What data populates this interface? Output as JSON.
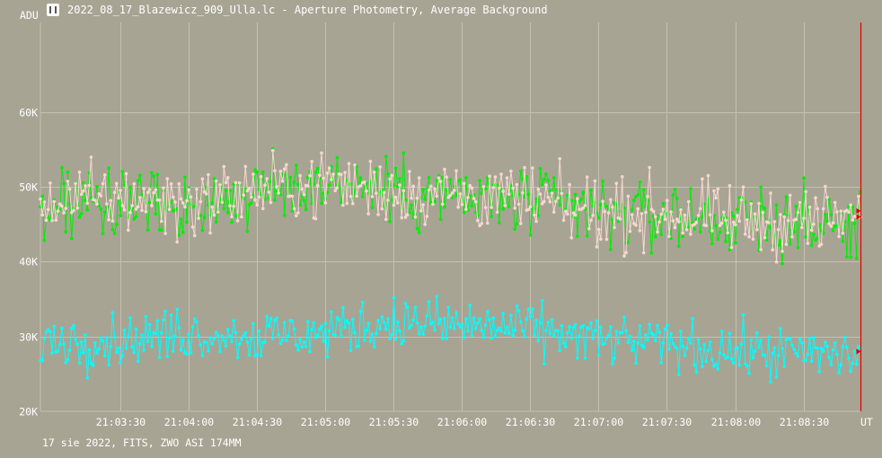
{
  "window": {
    "title": "2022_08_17_Blazewicz_909_Ulla.lc - Aperture Photometry, Average Background",
    "icon": "telescope-icon"
  },
  "footer": "17 sie 2022, FITS, ZWO ASI 174MM",
  "colors": {
    "background": "#a8a494",
    "grid": "#c4c0b3",
    "series_green": "#00ee00",
    "series_pink": "#f6d8d0",
    "series_cyan": "#00ffff",
    "cursor": "#e00000"
  },
  "chart_data": {
    "type": "line",
    "ylabel": "ADU",
    "xlabel": "UT",
    "ylim": [
      20000,
      72000
    ],
    "y_ticks": [
      {
        "value": 20000,
        "label": "20K"
      },
      {
        "value": 30000,
        "label": "30K"
      },
      {
        "value": 40000,
        "label": "40K"
      },
      {
        "value": 50000,
        "label": "50K"
      },
      {
        "value": 60000,
        "label": "60K"
      }
    ],
    "xlim": [
      "21:02:55",
      "21:08:55"
    ],
    "x_ticks": [
      "21:03:30",
      "21:04:00",
      "21:04:30",
      "21:05:00",
      "21:05:30",
      "21:06:00",
      "21:06:30",
      "21:07:00",
      "21:07:30",
      "21:08:00",
      "21:08:30"
    ],
    "grid": true,
    "cursor_time": "21:08:55",
    "series": [
      {
        "color": "#00ee00",
        "x_start": "21:02:55",
        "x_end": "21:08:55",
        "trend": [
          [
            "21:02:55",
            47500
          ],
          [
            "21:03:30",
            48500
          ],
          [
            "21:04:00",
            47500
          ],
          [
            "21:04:30",
            49000
          ],
          [
            "21:05:00",
            51000
          ],
          [
            "21:05:30",
            49500
          ],
          [
            "21:06:00",
            48500
          ],
          [
            "21:06:30",
            48000
          ],
          [
            "21:07:00",
            46500
          ],
          [
            "21:07:30",
            46000
          ],
          [
            "21:08:00",
            45500
          ],
          [
            "21:08:55",
            44500
          ]
        ],
        "noise": 4200
      },
      {
        "color": "#f6d8d0",
        "x_start": "21:02:55",
        "x_end": "21:08:55",
        "trend": [
          [
            "21:02:55",
            48000
          ],
          [
            "21:03:30",
            48500
          ],
          [
            "21:04:00",
            48000
          ],
          [
            "21:04:30",
            49500
          ],
          [
            "21:05:00",
            50500
          ],
          [
            "21:05:30",
            49500
          ],
          [
            "21:06:00",
            49000
          ],
          [
            "21:06:30",
            48000
          ],
          [
            "21:07:00",
            46500
          ],
          [
            "21:07:30",
            46500
          ],
          [
            "21:08:00",
            45500
          ],
          [
            "21:08:55",
            45500
          ]
        ],
        "noise": 4000
      },
      {
        "color": "#00ffff",
        "x_start": "21:02:55",
        "x_end": "21:08:55",
        "trend": [
          [
            "21:02:55",
            29500
          ],
          [
            "21:03:30",
            29500
          ],
          [
            "21:04:00",
            30500
          ],
          [
            "21:04:30",
            30000
          ],
          [
            "21:05:00",
            30500
          ],
          [
            "21:05:30",
            32000
          ],
          [
            "21:06:00",
            31500
          ],
          [
            "21:06:30",
            31000
          ],
          [
            "21:07:00",
            29500
          ],
          [
            "21:07:30",
            29000
          ],
          [
            "21:08:00",
            28000
          ],
          [
            "21:08:55",
            27500
          ]
        ],
        "noise": 3000
      }
    ]
  }
}
